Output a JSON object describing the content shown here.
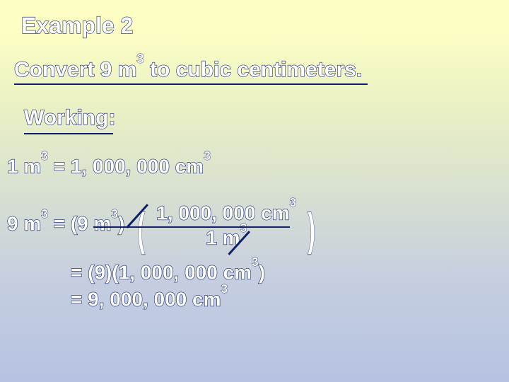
{
  "colors": {
    "text_outline": "#0f1f6a",
    "text_fill": "#ffffff",
    "bg_top": "#fcfec3",
    "bg_bottom": "#b6c2e2",
    "underline": "#0f1f6a"
  },
  "typography": {
    "title_fontsize": 32,
    "body_fontsize": 28,
    "font_family": "Arial",
    "weight": "bold"
  },
  "title": "Example 2",
  "question_before": "Convert 9 m",
  "question_sup": "3",
  "question_after": " to cubic centimeters.",
  "working_label": "Working:",
  "line1": {
    "a": "1 m",
    "sup1": "3",
    "b": " = 1, 000, 000 cm",
    "sup2": "3"
  },
  "line2": {
    "lhs_a": "9 m",
    "lhs_sup": "3",
    "lhs_b": " = (9 m",
    "lhs_sup2": "3",
    "lhs_c": ")",
    "num_a": "1, 000, 000 cm",
    "num_sup": "3",
    "den_a": "1 m",
    "den_sup": "3"
  },
  "line3": {
    "a": "= (9)(1, 000, 000 cm",
    "sup": "3",
    "b": ")"
  },
  "line4": {
    "a": "= 9, 000, 000 cm",
    "sup": "3"
  }
}
